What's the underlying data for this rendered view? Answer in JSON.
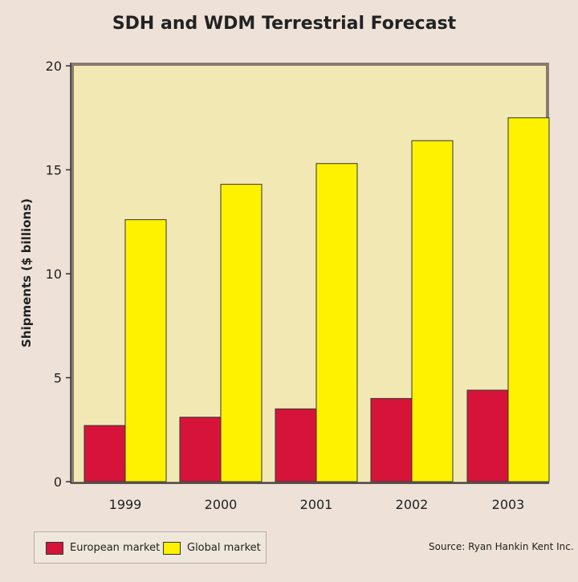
{
  "chart_data": {
    "type": "bar",
    "title": "SDH and WDM Terrestrial Forecast",
    "ylabel": "Shipments ($ billions)",
    "xlabel": "",
    "categories": [
      "1999",
      "2000",
      "2001",
      "2002",
      "2003"
    ],
    "series": [
      {
        "name": "European market",
        "color": "#d6143a",
        "values": [
          2.7,
          3.1,
          3.5,
          4.0,
          4.4
        ]
      },
      {
        "name": "Global market",
        "color": "#fff200",
        "values": [
          12.6,
          14.3,
          15.3,
          16.4,
          17.5
        ]
      }
    ],
    "ylim": [
      0,
      20
    ],
    "yticks": [
      0,
      5,
      10,
      15,
      20
    ],
    "grid": false,
    "legend_position": "bottom-left",
    "plot_background": "#f2e8b4",
    "source": "Source: Ryan Hankin Kent Inc."
  }
}
